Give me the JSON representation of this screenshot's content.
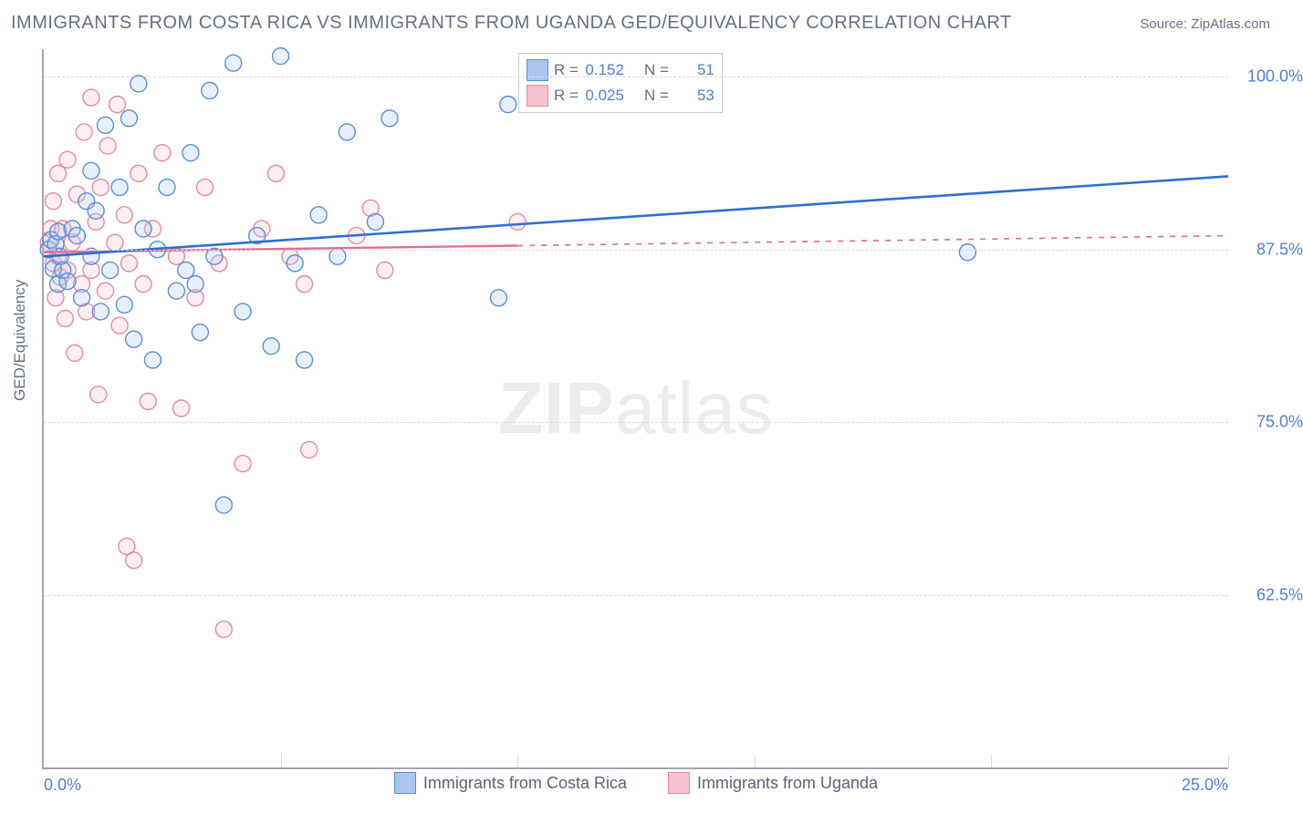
{
  "title": "IMMIGRANTS FROM COSTA RICA VS IMMIGRANTS FROM UGANDA GED/EQUIVALENCY CORRELATION CHART",
  "source_prefix": "Source: ",
  "source_name": "ZipAtlas.com",
  "ylabel": "GED/Equivalency",
  "watermark_bold": "ZIP",
  "watermark_rest": "atlas",
  "chart": {
    "type": "scatter",
    "background_color": "#ffffff",
    "axis_color": "#a0a7b3",
    "grid_color": "#d7dbe2",
    "tick_color": "#4f7fd6",
    "label_color": "#667085",
    "title_color": "#667085",
    "title_fontsize": 20,
    "label_fontsize": 17,
    "tick_fontsize": 18,
    "xlim": [
      0,
      25
    ],
    "ylim": [
      50,
      102
    ],
    "ytick_positions": [
      62.5,
      75.0,
      87.5,
      100.0
    ],
    "ytick_labels": [
      "62.5%",
      "75.0%",
      "87.5%",
      "100.0%"
    ],
    "xtick_positions": [
      0,
      5,
      10,
      15,
      20,
      25
    ],
    "xtick_left_label": "0.0%",
    "xtick_right_label": "25.0%",
    "marker_radius": 9,
    "marker_stroke_width": 1.4,
    "marker_fill_opacity": 0.28,
    "series_a": {
      "name": "Immigrants from Costa Rica",
      "fill": "#a9c6f0",
      "stroke": "#5b8ed8",
      "trend_color": "#2f6fd0",
      "trend_width": 2.6,
      "trend_dash_after_x": 25,
      "R": "0.152",
      "N": "51",
      "trend": {
        "x1": 0,
        "y1": 87.0,
        "x2": 25,
        "y2": 92.8
      },
      "points": [
        [
          0.1,
          87.5
        ],
        [
          0.15,
          88.2
        ],
        [
          0.2,
          86.1
        ],
        [
          0.25,
          87.9
        ],
        [
          0.3,
          85.0
        ],
        [
          0.3,
          88.8
        ],
        [
          0.35,
          87.0
        ],
        [
          0.4,
          86.0
        ],
        [
          0.5,
          85.2
        ],
        [
          0.6,
          89.0
        ],
        [
          0.7,
          88.5
        ],
        [
          0.8,
          84.0
        ],
        [
          0.9,
          91.0
        ],
        [
          1.0,
          93.2
        ],
        [
          1.0,
          87.0
        ],
        [
          1.1,
          90.3
        ],
        [
          1.2,
          83.0
        ],
        [
          1.3,
          96.5
        ],
        [
          1.4,
          86.0
        ],
        [
          1.6,
          92.0
        ],
        [
          1.7,
          83.5
        ],
        [
          1.8,
          97.0
        ],
        [
          1.9,
          81.0
        ],
        [
          2.0,
          99.5
        ],
        [
          2.1,
          89.0
        ],
        [
          2.3,
          79.5
        ],
        [
          2.4,
          87.5
        ],
        [
          2.6,
          92.0
        ],
        [
          2.8,
          84.5
        ],
        [
          3.0,
          86.0
        ],
        [
          3.1,
          94.5
        ],
        [
          3.2,
          85.0
        ],
        [
          3.3,
          81.5
        ],
        [
          3.5,
          99.0
        ],
        [
          3.6,
          87.0
        ],
        [
          3.8,
          69.0
        ],
        [
          4.0,
          101.0
        ],
        [
          4.2,
          83.0
        ],
        [
          4.5,
          88.5
        ],
        [
          4.8,
          80.5
        ],
        [
          5.0,
          101.5
        ],
        [
          5.3,
          86.5
        ],
        [
          5.5,
          79.5
        ],
        [
          5.8,
          90.0
        ],
        [
          6.2,
          87.0
        ],
        [
          6.4,
          96.0
        ],
        [
          7.0,
          89.5
        ],
        [
          7.3,
          97.0
        ],
        [
          9.6,
          84.0
        ],
        [
          9.8,
          98.0
        ],
        [
          19.5,
          87.3
        ]
      ]
    },
    "series_b": {
      "name": "Immigrants from Uganda",
      "fill": "#f6c3cf",
      "stroke": "#e98aa1",
      "trend_color": "#e46f8c",
      "trend_width": 2.4,
      "trend_dash_after_x": 10.0,
      "R": "0.025",
      "N": "53",
      "trend": {
        "x1": 0,
        "y1": 87.3,
        "x2": 25,
        "y2": 88.5
      },
      "points": [
        [
          0.1,
          88.0
        ],
        [
          0.15,
          89.0
        ],
        [
          0.2,
          86.5
        ],
        [
          0.2,
          91.0
        ],
        [
          0.25,
          84.0
        ],
        [
          0.3,
          93.0
        ],
        [
          0.3,
          87.0
        ],
        [
          0.35,
          85.5
        ],
        [
          0.4,
          89.0
        ],
        [
          0.45,
          82.5
        ],
        [
          0.5,
          94.0
        ],
        [
          0.5,
          86.0
        ],
        [
          0.6,
          88.0
        ],
        [
          0.65,
          80.0
        ],
        [
          0.7,
          91.5
        ],
        [
          0.8,
          85.0
        ],
        [
          0.85,
          96.0
        ],
        [
          0.9,
          83.0
        ],
        [
          1.0,
          98.5
        ],
        [
          1.0,
          86.0
        ],
        [
          1.1,
          89.5
        ],
        [
          1.15,
          77.0
        ],
        [
          1.2,
          92.0
        ],
        [
          1.3,
          84.5
        ],
        [
          1.35,
          95.0
        ],
        [
          1.5,
          88.0
        ],
        [
          1.55,
          98.0
        ],
        [
          1.6,
          82.0
        ],
        [
          1.7,
          90.0
        ],
        [
          1.75,
          66.0
        ],
        [
          1.8,
          86.5
        ],
        [
          1.9,
          65.0
        ],
        [
          2.0,
          93.0
        ],
        [
          2.1,
          85.0
        ],
        [
          2.2,
          76.5
        ],
        [
          2.3,
          89.0
        ],
        [
          2.5,
          94.5
        ],
        [
          2.8,
          87.0
        ],
        [
          2.9,
          76.0
        ],
        [
          3.2,
          84.0
        ],
        [
          3.4,
          92.0
        ],
        [
          3.7,
          86.5
        ],
        [
          3.8,
          60.0
        ],
        [
          4.2,
          72.0
        ],
        [
          4.6,
          89.0
        ],
        [
          4.9,
          93.0
        ],
        [
          5.2,
          87.0
        ],
        [
          5.5,
          85.0
        ],
        [
          5.6,
          73.0
        ],
        [
          6.6,
          88.5
        ],
        [
          6.9,
          90.5
        ],
        [
          7.2,
          86.0
        ],
        [
          10.0,
          89.5
        ]
      ]
    }
  }
}
